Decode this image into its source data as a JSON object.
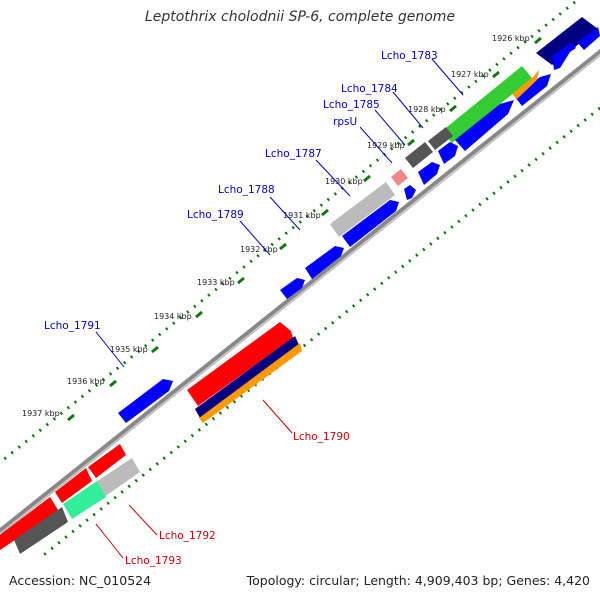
{
  "title": "Leptothrix cholodnii SP-6, complete genome",
  "footer": {
    "accession": "Accession: NC_010524",
    "topology": "Topology: circular; Length: 4,909,403 bp; Genes: 4,420"
  },
  "colors": {
    "forward_cds": "#0000ff",
    "reverse_cds": "#ff0000",
    "rna": "#ff9900",
    "dark_feature": "#000080",
    "green_feature": "#33cc33",
    "grey_feature": "#555555",
    "light_grey_feature": "#bbbbbb",
    "aqua_green_feature": "#33ee99",
    "pink_feature": "#ee8888",
    "backbone": "#888888",
    "tick": "#117711"
  },
  "kbp_ticks": [
    "1926 kbp",
    "1927 kbp",
    "1928 kbp",
    "1929 kbp",
    "1930 kbp",
    "1931 kbp",
    "1932 kbp",
    "1933 kbp",
    "1934 kbp",
    "1935 kbp",
    "1936 kbp",
    "1937 kbp"
  ],
  "gene_labels": [
    {
      "text": "Lcho_1783",
      "color": "blue"
    },
    {
      "text": "Lcho_1784",
      "color": "blue"
    },
    {
      "text": "Lcho_1785",
      "color": "blue"
    },
    {
      "text": "rpsU",
      "color": "blue"
    },
    {
      "text": "Lcho_1787",
      "color": "blue"
    },
    {
      "text": "Lcho_1788",
      "color": "blue"
    },
    {
      "text": "Lcho_1789",
      "color": "blue"
    },
    {
      "text": "Lcho_1791",
      "color": "blue"
    },
    {
      "text": "Lcho_1790",
      "color": "red"
    },
    {
      "text": "Lcho_1792",
      "color": "red"
    },
    {
      "text": "Lcho_1793",
      "color": "red"
    }
  ]
}
